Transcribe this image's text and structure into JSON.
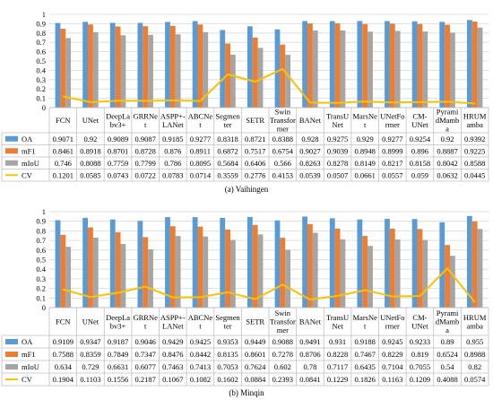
{
  "chart_data": [
    {
      "type": "bar",
      "caption": "(a) Vaihingen",
      "categories": [
        "FCN",
        "UNet",
        "DeepLabv3+",
        "GRRNet",
        "ASPP+-LANet",
        "ABCNet",
        "Segmenter",
        "SETR",
        "Swin Transformer",
        "BANet",
        "TransUNet",
        "MarsNet",
        "UNetFormer",
        "CM-UNet",
        "PyramidMamba",
        "HRUMamba"
      ],
      "category_labels": [
        [
          "FCN"
        ],
        [
          "UNet"
        ],
        [
          "DeepLa",
          "bv3+"
        ],
        [
          "GRRNe",
          "t"
        ],
        [
          "ASPP+-",
          "LANet"
        ],
        [
          "ABCNe",
          "t"
        ],
        [
          "Segmen",
          "ter"
        ],
        [
          "SETR"
        ],
        [
          "Swin",
          "Transfor",
          "mer"
        ],
        [
          "BANet"
        ],
        [
          "TransU",
          "Net"
        ],
        [
          "MarsNe",
          "t"
        ],
        [
          "UNetFo",
          "rmer"
        ],
        [
          "CM-",
          "UNet"
        ],
        [
          "Pyrami",
          "dMamb",
          "a"
        ],
        [
          "HRUM",
          "amba"
        ]
      ],
      "ylim": [
        0,
        1
      ],
      "yticks": [
        "0",
        "0.1",
        "0.2",
        "0.3",
        "0.4",
        "0.5",
        "0.6",
        "0.7",
        "0.8",
        "0.9",
        "1"
      ],
      "series": [
        {
          "name": "OA",
          "kind": "bar",
          "color": "#5b9bd5",
          "values": [
            0.9071,
            0.92,
            0.9089,
            0.9087,
            0.9185,
            0.9277,
            0.8318,
            0.8721,
            0.8388,
            0.928,
            0.9275,
            0.929,
            0.9277,
            0.9254,
            0.92,
            0.9392
          ],
          "labels": [
            "0.9071",
            "0.92",
            "0.9089",
            "0.9087",
            "0.9185",
            "0.9277",
            "0.8318",
            "0.8721",
            "0.8388",
            "0.928",
            "0.9275",
            "0.929",
            "0.9277",
            "0.9254",
            "0.92",
            "0.9392"
          ]
        },
        {
          "name": "mF1",
          "kind": "bar",
          "color": "#ed7d31",
          "values": [
            0.8461,
            0.8918,
            0.8701,
            0.8728,
            0.876,
            0.8911,
            0.6872,
            0.7517,
            0.6754,
            0.9027,
            0.9039,
            0.8948,
            0.8999,
            0.896,
            0.8887,
            0.9225
          ],
          "labels": [
            "0.8461",
            "0.8918",
            "0.8701",
            "0.8728",
            "0.876",
            "0.8911",
            "0.6872",
            "0.7517",
            "0.6754",
            "0.9027",
            "0.9039",
            "0.8948",
            "0.8999",
            "0.896",
            "0.8887",
            "0.9225"
          ]
        },
        {
          "name": "mIoU",
          "kind": "bar",
          "color": "#a5a5a5",
          "values": [
            0.746,
            0.8088,
            0.7759,
            0.7799,
            0.786,
            0.8095,
            0.5684,
            0.6406,
            0.566,
            0.8263,
            0.8278,
            0.8149,
            0.8217,
            0.8158,
            0.8042,
            0.8588
          ],
          "labels": [
            "0.746",
            "0.8088",
            "0.7759",
            "0.7799",
            "0.786",
            "0.8095",
            "0.5684",
            "0.6406",
            "0.566",
            "0.8263",
            "0.8278",
            "0.8149",
            "0.8217",
            "0.8158",
            "0.8042",
            "0.8588"
          ]
        },
        {
          "name": "CV",
          "kind": "line",
          "color": "#ffc000",
          "values": [
            0.1201,
            0.0585,
            0.0743,
            0.0722,
            0.0783,
            0.0714,
            0.3559,
            0.2776,
            0.4153,
            0.0539,
            0.0507,
            0.0661,
            0.0557,
            0.059,
            0.0632,
            0.0445
          ],
          "labels": [
            "0.1201",
            "0.0585",
            "0.0743",
            "0.0722",
            "0.0783",
            "0.0714",
            "0.3559",
            "0.2776",
            "0.4153",
            "0.0539",
            "0.0507",
            "0.0661",
            "0.0557",
            "0.059",
            "0.0632",
            "0.0445"
          ]
        }
      ]
    },
    {
      "type": "bar",
      "caption": "(b) Minqin",
      "categories": [
        "FCN",
        "UNet",
        "DeepLabv3+",
        "GRRNet",
        "ASPP+-LANet",
        "ABCNet",
        "Segmenter",
        "SETR",
        "Swin Transformer",
        "BANet",
        "TransUNet",
        "MarsNet",
        "UNetFormer",
        "CM-UNet",
        "PyramidMamba",
        "HRUMamba"
      ],
      "category_labels": [
        [
          "FCN"
        ],
        [
          "UNet"
        ],
        [
          "DeepLa",
          "bv3+"
        ],
        [
          "GRRNe",
          "t"
        ],
        [
          "ASPP+-",
          "LANet"
        ],
        [
          "ABCNe",
          "t"
        ],
        [
          "Segmen",
          "ter"
        ],
        [
          "SETR"
        ],
        [
          "Swin",
          "Transfor",
          "mer"
        ],
        [
          "BANet"
        ],
        [
          "TransU",
          "Net"
        ],
        [
          "MarsNe",
          "t"
        ],
        [
          "UNetFo",
          "rmer"
        ],
        [
          "CM-",
          "UNet"
        ],
        [
          "Pyrami",
          "dMamb",
          "a"
        ],
        [
          "HRUM",
          "amba"
        ]
      ],
      "ylim": [
        0,
        1
      ],
      "yticks": [
        "0",
        "0.1",
        "0.2",
        "0.3",
        "0.4",
        "0.5",
        "0.6",
        "0.7",
        "0.8",
        "0.9",
        "1"
      ],
      "series": [
        {
          "name": "OA",
          "kind": "bar",
          "color": "#5b9bd5",
          "values": [
            0.9109,
            0.9347,
            0.9187,
            0.9046,
            0.9429,
            0.9425,
            0.9353,
            0.9449,
            0.9088,
            0.9491,
            0.931,
            0.9188,
            0.9245,
            0.9233,
            0.89,
            0.955
          ],
          "labels": [
            "0.9109",
            "0.9347",
            "0.9187",
            "0.9046",
            "0.9429",
            "0.9425",
            "0.9353",
            "0.9449",
            "0.9088",
            "0.9491",
            "0.931",
            "0.9188",
            "0.9245",
            "0.9233",
            "0.89",
            "0.955"
          ]
        },
        {
          "name": "mF1",
          "kind": "bar",
          "color": "#ed7d31",
          "values": [
            0.7588,
            0.8359,
            0.7849,
            0.7347,
            0.8476,
            0.8442,
            0.8135,
            0.8601,
            0.7278,
            0.8706,
            0.8228,
            0.7467,
            0.8229,
            0.819,
            0.6524,
            0.8988
          ],
          "labels": [
            "0.7588",
            "0.8359",
            "0.7849",
            "0.7347",
            "0.8476",
            "0.8442",
            "0.8135",
            "0.8601",
            "0.7278",
            "0.8706",
            "0.8228",
            "0.7467",
            "0.8229",
            "0.819",
            "0.6524",
            "0.8988"
          ]
        },
        {
          "name": "mIoU",
          "kind": "bar",
          "color": "#a5a5a5",
          "values": [
            0.634,
            0.729,
            0.6631,
            0.6077,
            0.7463,
            0.7413,
            0.7053,
            0.7624,
            0.602,
            0.78,
            0.7117,
            0.6435,
            0.7104,
            0.7055,
            0.54,
            0.82
          ],
          "labels": [
            "0.634",
            "0.729",
            "0.6631",
            "0.6077",
            "0.7463",
            "0.7413",
            "0.7053",
            "0.7624",
            "0.602",
            "0.78",
            "0.7117",
            "0.6435",
            "0.7104",
            "0.7055",
            "0.54",
            "0.82"
          ]
        },
        {
          "name": "CV",
          "kind": "line",
          "color": "#ffc000",
          "values": [
            0.1904,
            0.1103,
            0.1556,
            0.2187,
            0.1067,
            0.1082,
            0.1602,
            0.0884,
            0.2393,
            0.0841,
            0.1229,
            0.1826,
            0.1163,
            0.1209,
            0.4088,
            0.0574
          ],
          "labels": [
            "0.1904",
            "0.1103",
            "0.1556",
            "0.2187",
            "0.1067",
            "0.1082",
            "0.1602",
            "0.0884",
            "0.2393",
            "0.0841",
            "0.1229",
            "0.1826",
            "0.1163",
            "0.1209",
            "0.4088",
            "0.0574"
          ]
        }
      ]
    }
  ]
}
